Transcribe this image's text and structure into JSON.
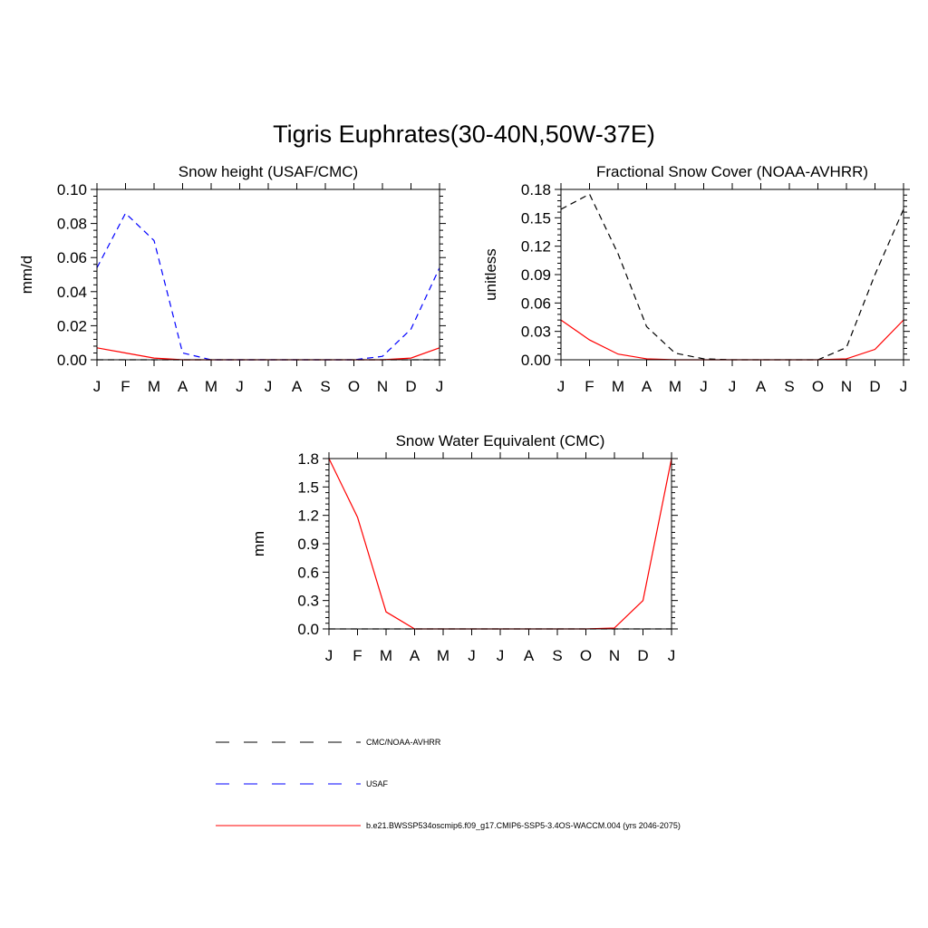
{
  "figure": {
    "title": "Tigris Euphrates(30-40N,50W-37E)"
  },
  "months": [
    "J",
    "F",
    "M",
    "A",
    "M",
    "J",
    "J",
    "A",
    "S",
    "O",
    "N",
    "D",
    "J"
  ],
  "chart_data": [
    {
      "type": "line",
      "title": "Snow height (USAF/CMC)",
      "xlabel": "",
      "ylabel": "mm/d",
      "categories": [
        "J",
        "F",
        "M",
        "A",
        "M",
        "J",
        "J",
        "A",
        "S",
        "O",
        "N",
        "D",
        "J"
      ],
      "ylim": [
        0,
        0.1
      ],
      "yticks": [
        "0.00",
        "0.02",
        "0.04",
        "0.06",
        "0.08",
        "0.10"
      ],
      "series": [
        {
          "name": "CMC/NOAA-AVHRR",
          "color": "#000000",
          "dash": "dashed",
          "values": [
            0,
            0,
            0,
            0,
            0,
            0,
            0,
            0,
            0,
            0,
            0,
            0,
            0
          ]
        },
        {
          "name": "USAF",
          "color": "#0000ff",
          "dash": "dashed",
          "values": [
            0.054,
            0.086,
            0.07,
            0.004,
            0,
            0,
            0,
            0,
            0,
            0,
            0.002,
            0.018,
            0.054
          ]
        },
        {
          "name": "b.e21.BWSSP534oscmip6.f09_g17.CMIP6-SSP5-3.4OS-WACCM.004 (yrs 2046-2075)",
          "color": "#ff0000",
          "dash": "solid",
          "values": [
            0.007,
            0.004,
            0.001,
            0,
            0,
            0,
            0,
            0,
            0,
            0,
            0,
            0.001,
            0.007
          ]
        }
      ]
    },
    {
      "type": "line",
      "title": "Fractional Snow Cover (NOAA-AVHRR)",
      "xlabel": "",
      "ylabel": "unitless",
      "categories": [
        "J",
        "F",
        "M",
        "A",
        "M",
        "J",
        "J",
        "A",
        "S",
        "O",
        "N",
        "D",
        "J"
      ],
      "ylim": [
        0,
        0.18
      ],
      "yticks": [
        "0.00",
        "0.03",
        "0.06",
        "0.09",
        "0.12",
        "0.15",
        "0.18"
      ],
      "series": [
        {
          "name": "CMC/NOAA-AVHRR",
          "color": "#000000",
          "dash": "dashed",
          "values": [
            0.159,
            0.175,
            0.112,
            0.035,
            0.007,
            0.001,
            0,
            0,
            0,
            0,
            0.013,
            0.09,
            0.159
          ]
        },
        {
          "name": "b.e21.BWSSP534oscmip6.f09_g17.CMIP6-SSP5-3.4OS-WACCM.004 (yrs 2046-2075)",
          "color": "#ff0000",
          "dash": "solid",
          "values": [
            0.042,
            0.021,
            0.006,
            0.001,
            0,
            0,
            0,
            0,
            0,
            0,
            0.001,
            0.011,
            0.042
          ]
        }
      ]
    },
    {
      "type": "line",
      "title": "Snow Water Equivalent (CMC)",
      "xlabel": "",
      "ylabel": "mm",
      "categories": [
        "J",
        "F",
        "M",
        "A",
        "M",
        "J",
        "J",
        "A",
        "S",
        "O",
        "N",
        "D",
        "J"
      ],
      "ylim": [
        0,
        1.8
      ],
      "yticks": [
        "0.0",
        "0.3",
        "0.6",
        "0.9",
        "1.2",
        "1.5",
        "1.8"
      ],
      "series": [
        {
          "name": "CMC/NOAA-AVHRR",
          "color": "#000000",
          "dash": "dashed",
          "values": [
            0,
            0,
            0,
            0,
            0,
            0,
            0,
            0,
            0,
            0,
            0,
            0,
            0
          ]
        },
        {
          "name": "b.e21.BWSSP534oscmip6.f09_g17.CMIP6-SSP5-3.4OS-WACCM.004 (yrs 2046-2075)",
          "color": "#ff0000",
          "dash": "solid",
          "values": [
            1.8,
            1.18,
            0.18,
            0,
            0,
            0,
            0,
            0,
            0,
            0,
            0.01,
            0.3,
            1.8
          ]
        }
      ]
    }
  ],
  "legend": [
    {
      "label": "CMC/NOAA-AVHRR",
      "color": "#000000",
      "dash": "dashed"
    },
    {
      "label": "USAF",
      "color": "#0000ff",
      "dash": "dashed"
    },
    {
      "label": "b.e21.BWSSP534oscmip6.f09_g17.CMIP6-SSP5-3.4OS-WACCM.004 (yrs 2046-2075)",
      "color": "#ff0000",
      "dash": "solid"
    }
  ]
}
